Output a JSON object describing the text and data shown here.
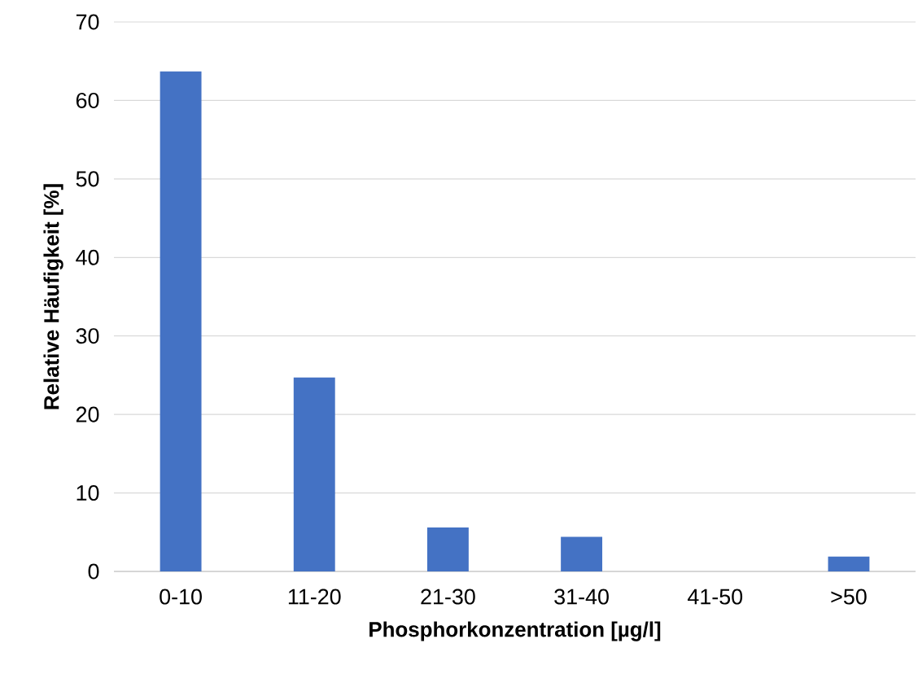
{
  "chart_data": {
    "type": "bar",
    "xlabel": "Phosphorkonzentration [µg/l]",
    "ylabel": "Relative Häufigkeit [%]",
    "categories": [
      "0-10",
      "11-20",
      "21-30",
      "31-40",
      "41-50",
      ">50"
    ],
    "values": [
      63.7,
      24.7,
      5.6,
      4.4,
      0,
      1.9
    ],
    "color": "#4472c4",
    "ylim": [
      0,
      70
    ],
    "yticks": [
      0,
      10,
      20,
      30,
      40,
      50,
      60,
      70
    ],
    "grid": "y"
  }
}
